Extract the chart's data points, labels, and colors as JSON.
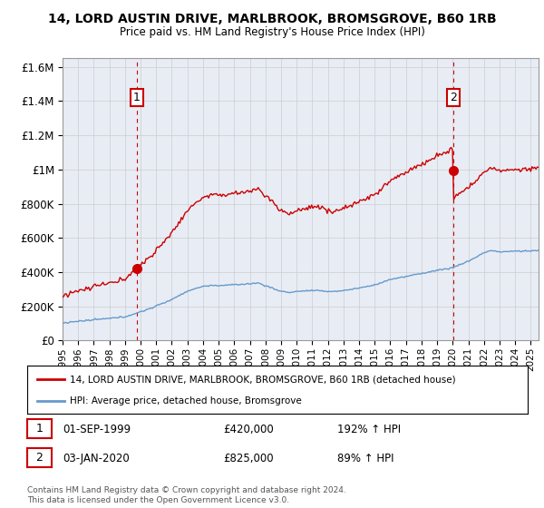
{
  "title": "14, LORD AUSTIN DRIVE, MARLBROOK, BROMSGROVE, B60 1RB",
  "subtitle": "Price paid vs. HM Land Registry's House Price Index (HPI)",
  "red_label": "14, LORD AUSTIN DRIVE, MARLBROOK, BROMSGROVE, B60 1RB (detached house)",
  "blue_label": "HPI: Average price, detached house, Bromsgrove",
  "annotation1_num": "1",
  "annotation1_date": "01-SEP-1999",
  "annotation1_price": "£420,000",
  "annotation1_hpi": "192% ↑ HPI",
  "annotation2_num": "2",
  "annotation2_date": "03-JAN-2020",
  "annotation2_price": "£825,000",
  "annotation2_hpi": "89% ↑ HPI",
  "footer": "Contains HM Land Registry data © Crown copyright and database right 2024.\nThis data is licensed under the Open Government Licence v3.0.",
  "red_color": "#cc0000",
  "blue_color": "#6699cc",
  "background_color": "#ffffff",
  "grid_color": "#cccccc",
  "ylim": [
    0,
    1650000
  ],
  "yticks": [
    0,
    200000,
    400000,
    600000,
    800000,
    1000000,
    1200000,
    1400000,
    1600000
  ],
  "sale1_x": 1999.75,
  "sale1_y": 420000,
  "sale2_x": 2020.02,
  "sale2_y": 825000,
  "xmin": 1995.0,
  "xmax": 2025.5,
  "chart_bg": "#e8edf5"
}
